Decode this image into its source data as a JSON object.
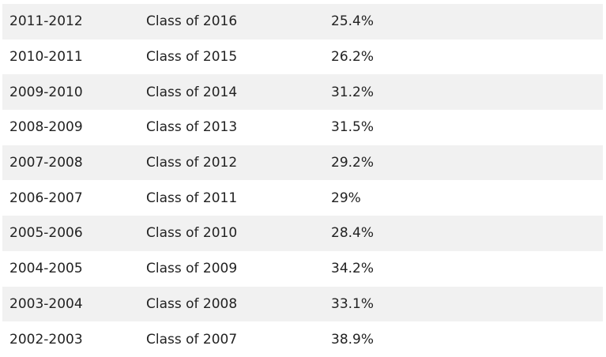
{
  "table": {
    "rows": [
      {
        "year": "2011-2012",
        "class": "Class of 2016",
        "rate": "25.4%"
      },
      {
        "year": "2010-2011",
        "class": "Class of 2015",
        "rate": "26.2%"
      },
      {
        "year": "2009-2010",
        "class": "Class of 2014",
        "rate": "31.2%"
      },
      {
        "year": "2008-2009",
        "class": "Class of 2013",
        "rate": "31.5%"
      },
      {
        "year": "2007-2008",
        "class": "Class of 2012",
        "rate": "29.2%"
      },
      {
        "year": "2006-2007",
        "class": "Class of 2011",
        "rate": "29%"
      },
      {
        "year": "2005-2006",
        "class": "Class of 2010",
        "rate": "28.4%"
      },
      {
        "year": "2004-2005",
        "class": "Class of 2009",
        "rate": "34.2%"
      },
      {
        "year": "2003-2004",
        "class": "Class of 2008",
        "rate": "33.1%"
      },
      {
        "year": "2002-2003",
        "class": "Class of 2007",
        "rate": "38.9%"
      }
    ]
  },
  "colors": {
    "stripe": "#f1f1f1",
    "text": "#222222"
  }
}
